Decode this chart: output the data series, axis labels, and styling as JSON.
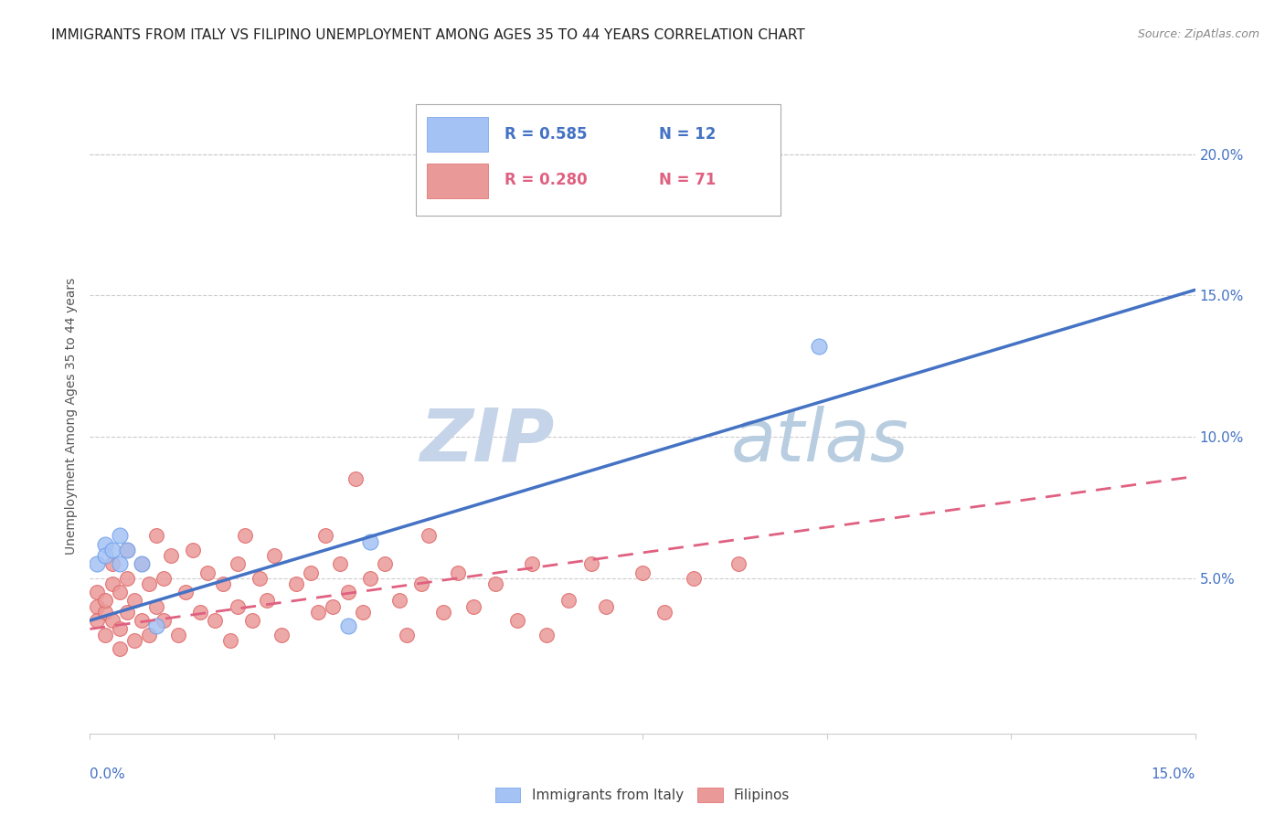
{
  "title": "IMMIGRANTS FROM ITALY VS FILIPINO UNEMPLOYMENT AMONG AGES 35 TO 44 YEARS CORRELATION CHART",
  "source": "Source: ZipAtlas.com",
  "ylabel": "Unemployment Among Ages 35 to 44 years",
  "xlim": [
    0.0,
    0.15
  ],
  "ylim": [
    -0.005,
    0.22
  ],
  "legend_italy_R": "R = 0.585",
  "legend_italy_N": "N = 12",
  "legend_filipino_R": "R = 0.280",
  "legend_filipino_N": "N = 71",
  "legend_label_italy": "Immigrants from Italy",
  "legend_label_filipino": "Filipinos",
  "italy_color": "#a4c2f4",
  "italy_edge_color": "#6d9eeb",
  "filipino_color": "#ea9999",
  "filipino_edge_color": "#e06666",
  "italy_trend_color": "#4472c4",
  "filipino_trend_color": "#e06080",
  "italy_trend_x": [
    0.0,
    0.15
  ],
  "italy_trend_y": [
    0.035,
    0.152
  ],
  "filipino_trend_x": [
    0.0,
    0.15
  ],
  "filipino_trend_y": [
    0.032,
    0.086
  ],
  "grid_color": "#cccccc",
  "background_color": "#ffffff",
  "title_fontsize": 11,
  "tick_fontsize": 11,
  "watermark_zip_color": "#c5d4e8",
  "watermark_atlas_color": "#b8cde0",
  "italy_scatter_x": [
    0.001,
    0.002,
    0.002,
    0.003,
    0.004,
    0.004,
    0.005,
    0.007,
    0.009,
    0.035,
    0.099,
    0.038
  ],
  "italy_scatter_y": [
    0.055,
    0.062,
    0.058,
    0.06,
    0.055,
    0.065,
    0.06,
    0.055,
    0.033,
    0.033,
    0.132,
    0.063
  ],
  "filipino_scatter_x": [
    0.001,
    0.001,
    0.001,
    0.002,
    0.002,
    0.002,
    0.003,
    0.003,
    0.003,
    0.004,
    0.004,
    0.004,
    0.005,
    0.005,
    0.005,
    0.006,
    0.006,
    0.007,
    0.007,
    0.008,
    0.008,
    0.009,
    0.009,
    0.01,
    0.01,
    0.011,
    0.012,
    0.013,
    0.014,
    0.015,
    0.016,
    0.017,
    0.018,
    0.019,
    0.02,
    0.02,
    0.021,
    0.022,
    0.023,
    0.024,
    0.025,
    0.026,
    0.028,
    0.03,
    0.031,
    0.032,
    0.033,
    0.034,
    0.035,
    0.036,
    0.037,
    0.038,
    0.04,
    0.042,
    0.043,
    0.045,
    0.046,
    0.048,
    0.05,
    0.052,
    0.055,
    0.058,
    0.06,
    0.062,
    0.065,
    0.068,
    0.07,
    0.075,
    0.078,
    0.082,
    0.088
  ],
  "filipino_scatter_y": [
    0.04,
    0.035,
    0.045,
    0.038,
    0.042,
    0.03,
    0.048,
    0.035,
    0.055,
    0.032,
    0.045,
    0.025,
    0.05,
    0.038,
    0.06,
    0.042,
    0.028,
    0.055,
    0.035,
    0.048,
    0.03,
    0.04,
    0.065,
    0.05,
    0.035,
    0.058,
    0.03,
    0.045,
    0.06,
    0.038,
    0.052,
    0.035,
    0.048,
    0.028,
    0.055,
    0.04,
    0.065,
    0.035,
    0.05,
    0.042,
    0.058,
    0.03,
    0.048,
    0.052,
    0.038,
    0.065,
    0.04,
    0.055,
    0.045,
    0.085,
    0.038,
    0.05,
    0.055,
    0.042,
    0.03,
    0.048,
    0.065,
    0.038,
    0.052,
    0.04,
    0.048,
    0.035,
    0.055,
    0.03,
    0.042,
    0.055,
    0.04,
    0.052,
    0.038,
    0.05,
    0.055
  ]
}
